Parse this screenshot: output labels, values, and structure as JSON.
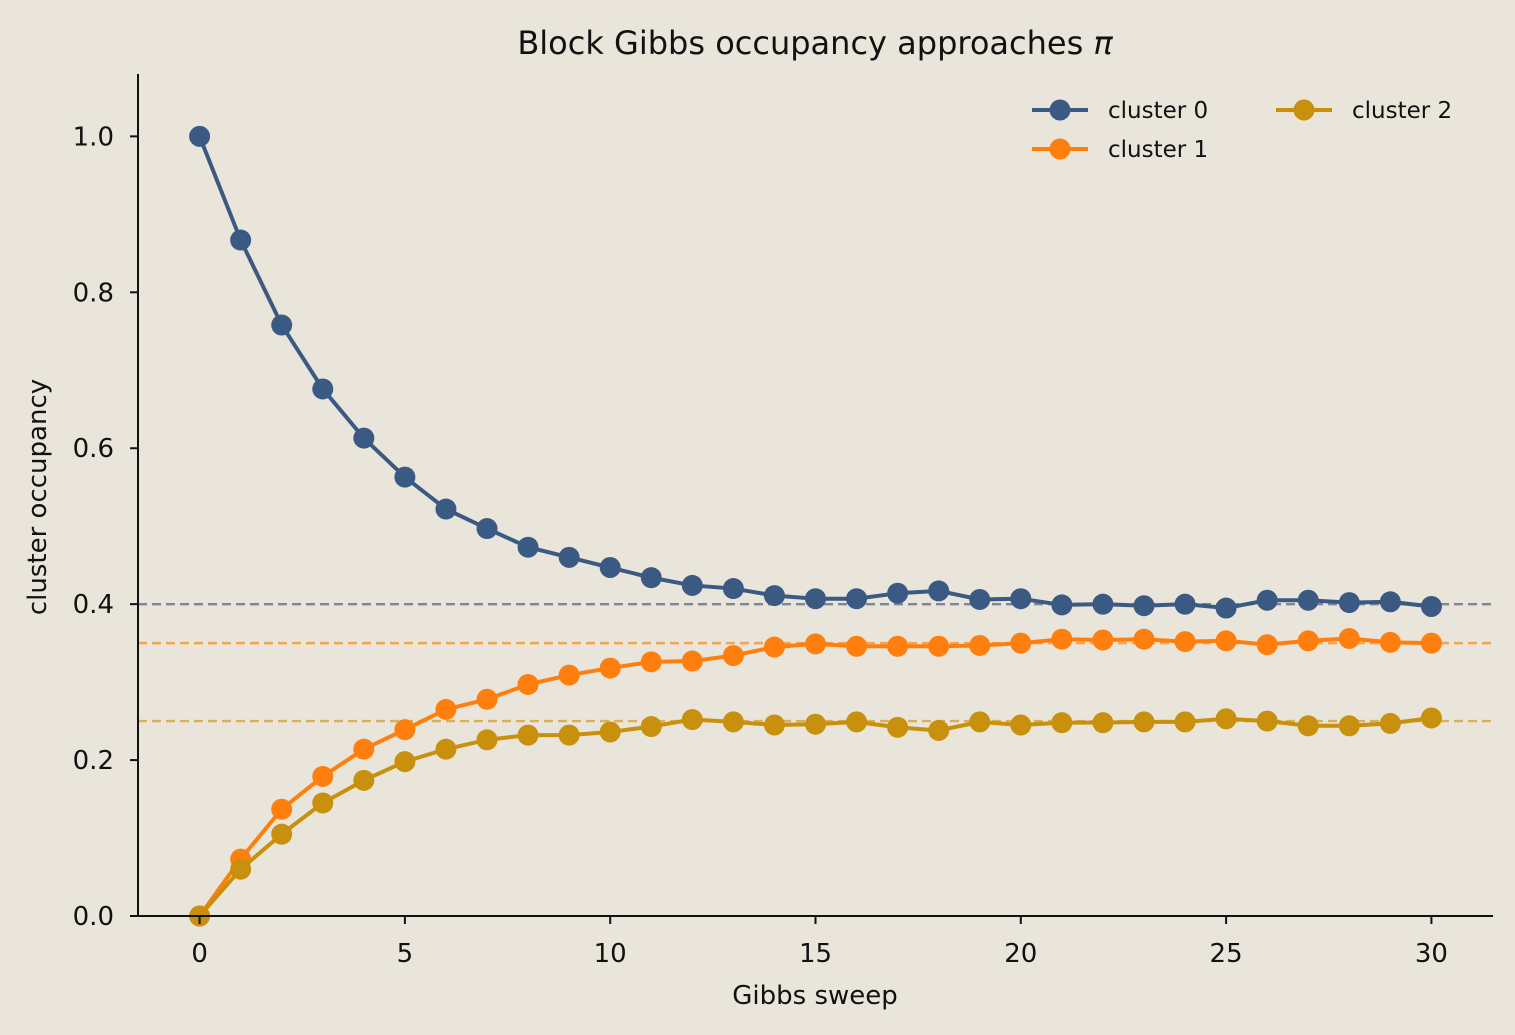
{
  "chart_data": {
    "type": "line",
    "title_main": "Block Gibbs occupancy approaches ",
    "title_symbol": "π",
    "xlabel": "Gibbs sweep",
    "ylabel": "cluster occupancy",
    "xlim": [
      -1.5,
      31.5
    ],
    "ylim": [
      0.0,
      1.08
    ],
    "xticks": [
      0,
      5,
      10,
      15,
      20,
      25,
      30
    ],
    "yticks": [
      0.0,
      0.2,
      0.4,
      0.6,
      0.8,
      1.0
    ],
    "ytick_labels": [
      "0.0",
      "0.2",
      "0.4",
      "0.6",
      "0.8",
      "1.0"
    ],
    "grid": false,
    "legend_position": "top-right",
    "legend_columns": 2,
    "x": [
      0,
      1,
      2,
      3,
      4,
      5,
      6,
      7,
      8,
      9,
      10,
      11,
      12,
      13,
      14,
      15,
      16,
      17,
      18,
      19,
      20,
      21,
      22,
      23,
      24,
      25,
      26,
      27,
      28,
      29,
      30
    ],
    "series": [
      {
        "name": "cluster 0",
        "color": "#3a5a84",
        "values": [
          1.0,
          0.867,
          0.758,
          0.676,
          0.613,
          0.563,
          0.522,
          0.497,
          0.473,
          0.46,
          0.447,
          0.434,
          0.424,
          0.42,
          0.411,
          0.407,
          0.407,
          0.414,
          0.417,
          0.406,
          0.407,
          0.399,
          0.4,
          0.398,
          0.4,
          0.395,
          0.405,
          0.405,
          0.402,
          0.403,
          0.397
        ],
        "reference": 0.4,
        "reference_color": "#7d8698"
      },
      {
        "name": "cluster 1",
        "color": "#ff7f0e",
        "values": [
          0.0,
          0.073,
          0.137,
          0.179,
          0.214,
          0.239,
          0.265,
          0.278,
          0.297,
          0.309,
          0.318,
          0.326,
          0.327,
          0.334,
          0.345,
          0.349,
          0.346,
          0.346,
          0.346,
          0.347,
          0.35,
          0.355,
          0.354,
          0.355,
          0.352,
          0.353,
          0.348,
          0.353,
          0.356,
          0.351,
          0.35
        ],
        "reference": 0.35,
        "reference_color": "#f2a552"
      },
      {
        "name": "cluster 2",
        "color": "#c8900c",
        "values": [
          0.0,
          0.06,
          0.105,
          0.145,
          0.174,
          0.198,
          0.214,
          0.226,
          0.232,
          0.232,
          0.236,
          0.243,
          0.252,
          0.249,
          0.245,
          0.246,
          0.249,
          0.242,
          0.238,
          0.249,
          0.245,
          0.248,
          0.248,
          0.249,
          0.249,
          0.253,
          0.25,
          0.244,
          0.244,
          0.247,
          0.254
        ],
        "reference": 0.25,
        "reference_color": "#d9b05a"
      }
    ]
  }
}
